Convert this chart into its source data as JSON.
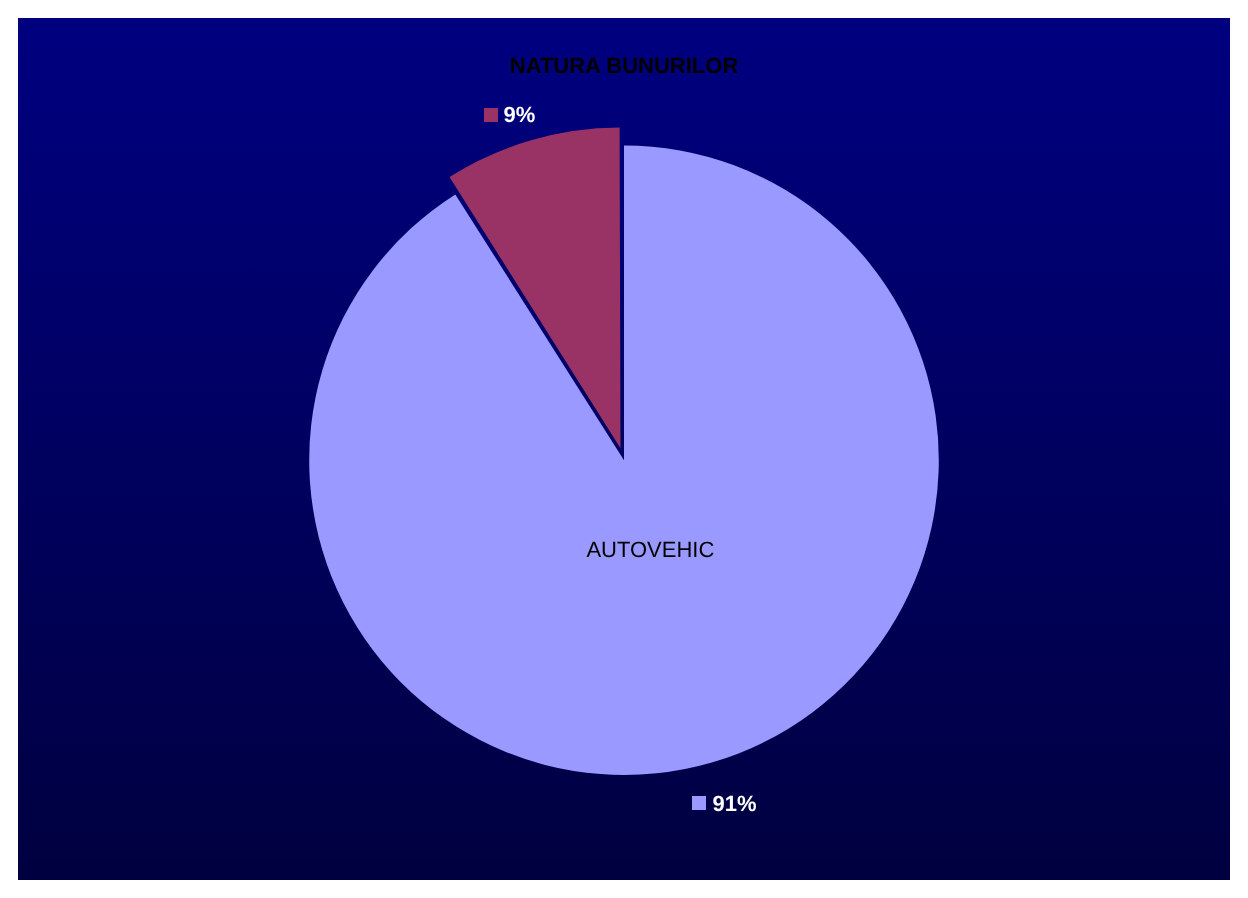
{
  "chart_data": {
    "type": "pie",
    "title": "NATURA BUNURILOR",
    "categories": [
      "AUTOVEHIC",
      null
    ],
    "values": [
      91,
      9
    ],
    "colors": [
      "#9999ff",
      "#993366"
    ],
    "value_labels": [
      "91%",
      "9%"
    ],
    "legend": false
  }
}
